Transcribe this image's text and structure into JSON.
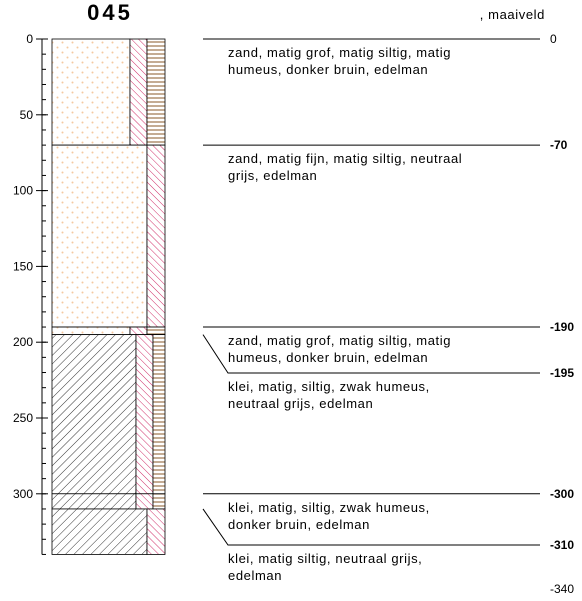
{
  "title": "045",
  "surface": ", maaiveld",
  "axis": {
    "ticks": [
      0,
      50,
      100,
      150,
      200,
      250,
      300
    ]
  },
  "boundaries": [
    {
      "value": 0,
      "label": "0"
    },
    {
      "value": 70,
      "label": "-70"
    },
    {
      "value": 190,
      "label": "-190"
    },
    {
      "value": 195,
      "label": "-195"
    },
    {
      "value": 300,
      "label": "-300"
    },
    {
      "value": 310,
      "label": "-310"
    },
    {
      "value": 340,
      "label": "-340"
    }
  ],
  "layers": [
    {
      "lines": [
        "zand, matig grof, matig siltig, matig",
        "humeus, donker bruin, edelman"
      ]
    },
    {
      "lines": [
        "zand, matig fijn, matig siltig, neutraal",
        "grijs, edelman"
      ]
    },
    {
      "lines": [
        "zand, matig grof, matig siltig, matig",
        "humeus, donker bruin, edelman"
      ]
    },
    {
      "lines": [
        "klei, matig, siltig, zwak humeus,",
        "neutraal grijs, edelman"
      ]
    },
    {
      "lines": [
        "klei, matig, siltig, zwak humeus,",
        "donker bruin, edelman"
      ]
    },
    {
      "lines": [
        "klei, matig siltig, neutraal grijs,",
        "edelman"
      ]
    }
  ]
}
